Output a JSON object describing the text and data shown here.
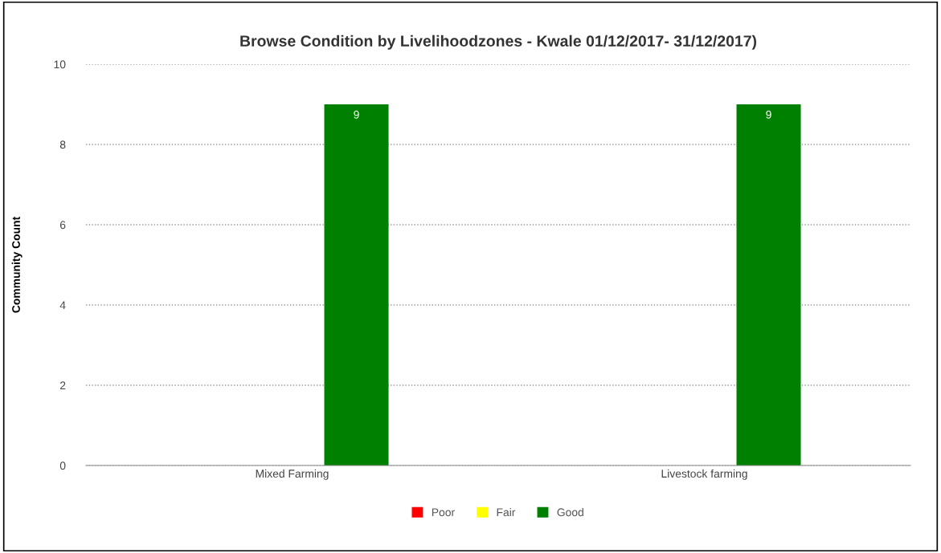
{
  "chart_data": {
    "type": "bar",
    "title": "Browse Condition by Livelihoodzones - Kwale 01/12/2017- 31/12/2017)",
    "ylabel": "Community Count",
    "categories": [
      "Mixed Farming",
      "Livestock farming"
    ],
    "series": [
      {
        "name": "Poor",
        "color": "#ff0000",
        "values": [
          0,
          0
        ]
      },
      {
        "name": "Fair",
        "color": "#ffff00",
        "values": [
          0,
          0
        ]
      },
      {
        "name": "Good",
        "color": "#008000",
        "values": [
          9,
          9
        ],
        "value_labels": [
          "9",
          "9"
        ]
      }
    ],
    "ylim": [
      0,
      10
    ],
    "yticks": [
      0,
      2,
      4,
      6,
      8,
      10
    ],
    "grid": "y",
    "legend": "bottom"
  }
}
